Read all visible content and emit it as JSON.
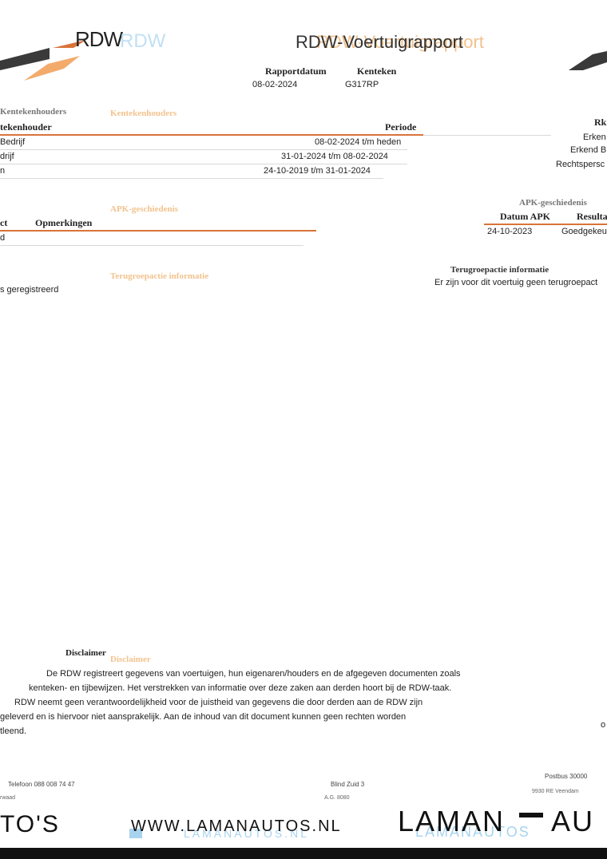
{
  "header": {
    "logo_text": "RDW",
    "logo_ghost": "RDW",
    "title": "RDW-Voertuigrapport",
    "title_ghost": "RDW-Voertuigrapport",
    "report_date_label": "Rapportdatum",
    "report_date": "08-02-2024",
    "plate_label": "Kenteken",
    "plate": "G317RP"
  },
  "holders": {
    "section_title": "Kentekenhouders",
    "section_title_ghost": "Kentekenhouders",
    "col_holder": "tekenhouder",
    "col_period": "Periode",
    "col_right": "Rk",
    "rows": [
      {
        "holder": "Bedrijf",
        "period": "08-02-2024 t/m heden",
        "right": "Erken"
      },
      {
        "holder": "drijf",
        "period": "31-01-2024 t/m 08-02-2024",
        "right": "Erkend B"
      },
      {
        "holder": "n",
        "period": "24-10-2019 t/m 31-01-2024",
        "right": "Rechtspersc"
      }
    ]
  },
  "apk": {
    "section_title": "APK-geschiedenis",
    "section_title_ghost": "APK-geschiedenis",
    "col_left": "ct",
    "col_remarks": "Opmerkingen",
    "col_date": "Datum APK",
    "col_result": "Resulta",
    "row_left": "d",
    "row_date": "24-10-2023",
    "row_result": "Goedgekeu"
  },
  "recall": {
    "section_title": "Terugroepactie informatie",
    "section_title_ghost": "Terugroepactie informatie",
    "left_text": "s geregistreerd",
    "right_text": "Er zijn voor dit voertuig geen terugroepact"
  },
  "disclaimer": {
    "title": "Disclaimer",
    "title_ghost": "Disclaimer",
    "lines": [
      "De RDW registreert gegevens van voertuigen, hun eigenaren/houders en de afgegeven documenten zoals",
      "kenteken- en tijbewijzen. Het verstrekken van informatie over deze zaken aan derden hoort bij de RDW-taak.",
      "RDW neemt geen verantwoordelijkheid voor de juistheid van gegevens die door derden aan de RDW zijn",
      "geleverd en is hiervoor niet aansprakelijk. Aan de inhoud van dit document kunnen geen rechten worden",
      "tleend."
    ],
    "right_edge": "o"
  },
  "footer": {
    "phone": "Telefoon 088 008 74 47",
    "address_mid": "Blind Zuid 3",
    "address_right": "Postbus 30000",
    "small_left": "rwaad",
    "small_mid": "A.G. 8080",
    "small_right": "9930 RE Veendam"
  },
  "banner": {
    "left_text": "TO'S",
    "url": "WWW.LAMANAUTOS.NL",
    "url_ghost": "LAMANAUTOS.NL",
    "brand": "LAMAN",
    "brand_suffix": "AU",
    "brand_ghost": "LAMANAUTOS"
  },
  "colors": {
    "accent_orange": "#d9733a",
    "ghost_orange": "#f0b87a",
    "ghost_blue": "#a7d3ef",
    "logo_dark": "#3a3a3a"
  }
}
